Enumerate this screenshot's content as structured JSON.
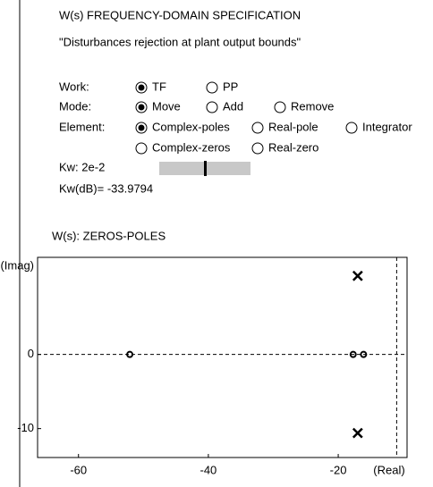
{
  "header": {
    "title": "W(s) FREQUENCY-DOMAIN SPECIFICATION",
    "subtitle": "\"Disturbances rejection at plant output bounds\""
  },
  "controls": [
    {
      "label": "Work:",
      "options": [
        {
          "label": "TF",
          "selected": true
        },
        {
          "label": "PP",
          "selected": false
        }
      ]
    },
    {
      "label": "Mode:",
      "options": [
        {
          "label": "Move",
          "selected": true
        },
        {
          "label": "Add",
          "selected": false
        },
        {
          "label": "Remove",
          "selected": false
        }
      ]
    },
    {
      "label": "Element:",
      "options": [
        {
          "label": "Complex-poles",
          "selected": true
        },
        {
          "label": "Real-pole",
          "selected": false
        },
        {
          "label": "Integrator",
          "selected": false
        },
        {
          "label": "Complex-zeros",
          "selected": false
        },
        {
          "label": "Real-zero",
          "selected": false
        }
      ]
    }
  ],
  "kw": {
    "label": "Kw: 2e-2",
    "db_label": "Kw(dB)= -33.9794"
  },
  "plot_title": "W(s):  ZEROS-POLES",
  "chart_data": {
    "type": "scatter",
    "x_label": "(Real)",
    "y_label": "(Imag)",
    "xlim": [
      -66.3,
      -9.4
    ],
    "ylim": [
      -13.9,
      13.1
    ],
    "xticks": [
      -60,
      -40,
      -20
    ],
    "yticks": [
      -10,
      0
    ],
    "vline_x": -11,
    "series": [
      {
        "marker": "x",
        "color": "#000000",
        "x": [
          -17,
          -17
        ],
        "values": [
          10.6,
          -10.6
        ]
      },
      {
        "marker": "o",
        "color": "#000000",
        "x": [
          -52.1,
          -17.7,
          -16.1
        ],
        "values": [
          0,
          0,
          0
        ]
      }
    ]
  }
}
